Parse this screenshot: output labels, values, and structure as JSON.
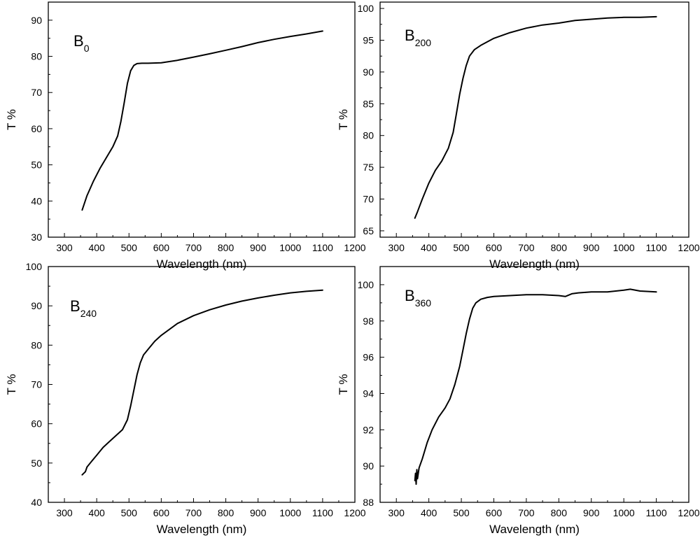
{
  "chart_data": [
    {
      "type": "line",
      "label": "B",
      "label_sub": "0",
      "xlabel": "Wavelength (nm)",
      "ylabel": "T %",
      "xlim": [
        250,
        1200
      ],
      "ylim": [
        30,
        95
      ],
      "xticks": [
        300,
        400,
        500,
        600,
        700,
        800,
        900,
        1000,
        1100,
        1200
      ],
      "yticks": [
        30,
        40,
        50,
        60,
        70,
        80,
        90
      ],
      "series": [
        {
          "name": "B0",
          "x": [
            355,
            370,
            390,
            410,
            430,
            450,
            465,
            475,
            485,
            495,
            505,
            515,
            525,
            540,
            560,
            600,
            650,
            700,
            750,
            800,
            850,
            900,
            950,
            1000,
            1050,
            1100
          ],
          "y": [
            37.5,
            41.5,
            45.5,
            49.0,
            52.0,
            55.0,
            58.0,
            62.0,
            67.0,
            72.5,
            76.0,
            77.5,
            78.0,
            78.1,
            78.1,
            78.2,
            78.9,
            79.8,
            80.7,
            81.7,
            82.7,
            83.8,
            84.7,
            85.5,
            86.2,
            87.0
          ]
        }
      ]
    },
    {
      "type": "line",
      "label": "B",
      "label_sub": "200",
      "xlabel": "Wavelength (nm)",
      "ylabel": "T %",
      "xlim": [
        250,
        1200
      ],
      "ylim": [
        64,
        101
      ],
      "xticks": [
        300,
        400,
        500,
        600,
        700,
        800,
        900,
        1000,
        1100,
        1200
      ],
      "yticks": [
        65,
        70,
        75,
        80,
        85,
        90,
        95,
        100
      ],
      "series": [
        {
          "name": "B200",
          "x": [
            357,
            365,
            380,
            400,
            420,
            440,
            460,
            475,
            485,
            495,
            505,
            515,
            525,
            540,
            560,
            600,
            650,
            700,
            750,
            800,
            850,
            900,
            950,
            1000,
            1050,
            1100
          ],
          "y": [
            67.0,
            68.0,
            70.0,
            72.5,
            74.5,
            76.0,
            78.0,
            80.5,
            83.5,
            86.5,
            89.0,
            91.0,
            92.5,
            93.5,
            94.2,
            95.3,
            96.2,
            96.9,
            97.4,
            97.7,
            98.1,
            98.3,
            98.5,
            98.6,
            98.6,
            98.7
          ]
        }
      ]
    },
    {
      "type": "line",
      "label": "B",
      "label_sub": "240",
      "xlabel": "Wavelength (nm)",
      "ylabel": "T %",
      "xlim": [
        250,
        1200
      ],
      "ylim": [
        40,
        100
      ],
      "xticks": [
        300,
        400,
        500,
        600,
        700,
        800,
        900,
        1000,
        1100,
        1200
      ],
      "yticks": [
        40,
        50,
        60,
        70,
        80,
        90,
        100
      ],
      "series": [
        {
          "name": "B240",
          "x": [
            355,
            365,
            370,
            385,
            400,
            420,
            440,
            460,
            480,
            495,
            505,
            515,
            525,
            535,
            545,
            560,
            580,
            600,
            650,
            700,
            750,
            800,
            850,
            900,
            950,
            1000,
            1050,
            1100
          ],
          "y": [
            47.0,
            47.8,
            49.0,
            50.5,
            52.0,
            54.0,
            55.5,
            57.0,
            58.5,
            61.0,
            64.5,
            68.5,
            72.5,
            75.5,
            77.5,
            79.0,
            81.0,
            82.5,
            85.5,
            87.5,
            89.0,
            90.2,
            91.2,
            92.0,
            92.7,
            93.3,
            93.7,
            94.0
          ]
        }
      ]
    },
    {
      "type": "line",
      "label": "B",
      "label_sub": "360",
      "xlabel": "Wavelength (nm)",
      "ylabel": "T %",
      "xlim": [
        250,
        1200
      ],
      "ylim": [
        88,
        101
      ],
      "xticks": [
        300,
        400,
        500,
        600,
        700,
        800,
        900,
        1000,
        1100,
        1200
      ],
      "yticks": [
        88,
        90,
        92,
        94,
        96,
        98,
        100
      ],
      "series": [
        {
          "name": "B360",
          "x": [
            357,
            359,
            361,
            363,
            365,
            370,
            380,
            395,
            410,
            430,
            450,
            465,
            480,
            495,
            505,
            515,
            525,
            535,
            545,
            560,
            580,
            600,
            650,
            700,
            750,
            800,
            820,
            840,
            860,
            900,
            950,
            1000,
            1020,
            1050,
            1100
          ],
          "y": [
            89.2,
            89.6,
            89.0,
            89.8,
            89.3,
            89.9,
            90.4,
            91.3,
            92.0,
            92.7,
            93.2,
            93.7,
            94.5,
            95.5,
            96.4,
            97.3,
            98.1,
            98.7,
            99.0,
            99.2,
            99.3,
            99.35,
            99.4,
            99.45,
            99.45,
            99.4,
            99.35,
            99.5,
            99.55,
            99.6,
            99.6,
            99.7,
            99.75,
            99.65,
            99.6
          ]
        }
      ]
    }
  ]
}
